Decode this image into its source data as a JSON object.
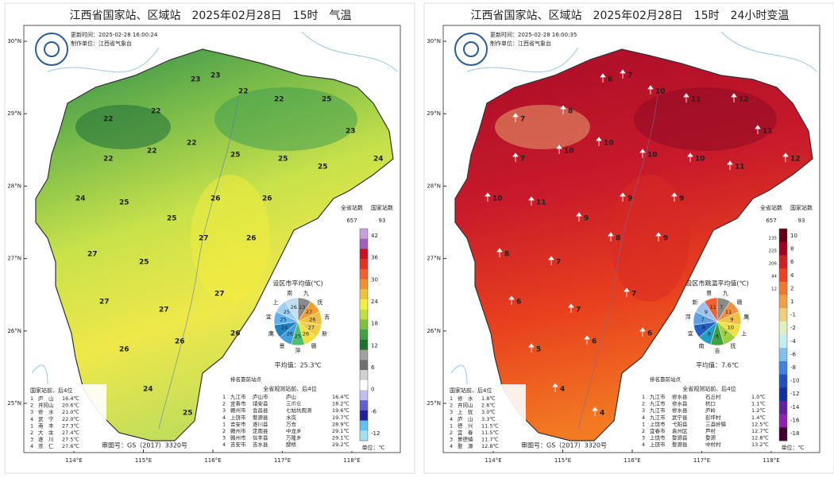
{
  "panels": [
    {
      "title": "江西省国家站、区域站　2025年02月28日　15时　气温",
      "updated": "更新时间：2025-02-28 16:00:24",
      "maker": "制作单位：江西省气象台",
      "lat_labels": [
        "30°N",
        "29°N",
        "28°N",
        "27°N",
        "26°N",
        "25°N"
      ],
      "lon_labels": [
        "114°E",
        "115°E",
        "116°E",
        "117°E",
        "118°E"
      ],
      "colorbar": {
        "left_header": "全省站数",
        "left_count": "657",
        "right_header": "国家站数",
        "right_count": "93",
        "ticks": [
          "42",
          "36",
          "30",
          "24",
          "18",
          "12",
          "6",
          "0",
          "-6",
          "-12"
        ],
        "counts": []
      },
      "stations": [
        22,
        22,
        23,
        23,
        22,
        22,
        25,
        23,
        24,
        22,
        22,
        22,
        25,
        25,
        25,
        24,
        25,
        25,
        26,
        26,
        27,
        25,
        27,
        26,
        27,
        27,
        27,
        26,
        26,
        26,
        24,
        25
      ],
      "pie": {
        "title": "设区市平均值(℃)",
        "cities": [
          "九",
          "抚",
          "吉",
          "新",
          "赣",
          "萍",
          "景",
          "鹰",
          "宜",
          "上",
          "南"
        ],
        "values": [
          "23",
          "27",
          "26",
          "27",
          "26",
          "25",
          "26",
          "24",
          "25",
          "25",
          "26"
        ],
        "average": "平均值：25.3℃"
      },
      "ranking_title": "排名靠前站点",
      "national": {
        "title": "国家站前、后4位",
        "rows": [
          [
            "1",
            "庐　山",
            "16.4℃"
          ],
          [
            "2",
            "井冈山",
            "20.6℃"
          ],
          [
            "3",
            "修　水",
            "21.0℃"
          ],
          [
            "4",
            "武　宁",
            "22.0℃"
          ],
          [
            "1",
            "南　丰",
            "27.3℃"
          ],
          [
            "2",
            "大　余",
            "27.4℃"
          ],
          [
            "3",
            "遂　川",
            "27.5℃"
          ],
          [
            "4",
            "崇　仁",
            "27.6℃"
          ]
        ]
      },
      "all": {
        "title": "全省规测站前、后4位",
        "rows": [
          [
            "1",
            "九江市",
            "庐山市",
            "庐山",
            "16.4℃"
          ],
          [
            "2",
            "宜春市",
            "靖安县",
            "三爪仑",
            "18.2℃"
          ],
          [
            "3",
            "赣州市",
            "会昌县",
            "七姑坑观测",
            "19.6℃"
          ],
          [
            "4",
            "上饶市",
            "婺源县",
            "水岚",
            "19.7℃"
          ],
          [
            "1",
            "吉安市",
            "遂川县",
            "万合",
            "28.9℃"
          ],
          [
            "2",
            "赣州市",
            "定南县",
            "中龙乡",
            "29.1℃"
          ],
          [
            "3",
            "赣州市",
            "信丰县",
            "万隆乡",
            "29.1℃"
          ],
          [
            "4",
            "吉安市",
            "吉水县",
            "醪桥",
            "29.2℃"
          ]
        ]
      },
      "review_no": "审图号：GS（2017）3320号",
      "unit": "单位：℃"
    },
    {
      "title": "江西省国家站、区域站　2025年02月28日　15时　24小时变温",
      "updated": "更新时间：2025-02-28 16:00:35",
      "maker": "制作单位：江西省气象台",
      "lat_labels": [
        "30°N",
        "29°N",
        "28°N",
        "27°N",
        "26°N",
        "25°N"
      ],
      "lon_labels": [
        "114°E",
        "115°E",
        "116°E",
        "117°E",
        "118°E"
      ],
      "colorbar": {
        "left_header": "全省站数",
        "left_count": "657",
        "right_header": "国家站数",
        "right_count": "93",
        "ticks": [
          "10",
          "8",
          "6",
          "4",
          "2",
          "1",
          "-1",
          "-2",
          "-4",
          "-6",
          "-8",
          "-10",
          "-12",
          "-14",
          "-16",
          "-18"
        ],
        "counts": [
          "135",
          "225",
          "206",
          "44",
          "12"
        ]
      },
      "stations": [
        7,
        8,
        6,
        7,
        10,
        11,
        12,
        11,
        12,
        7,
        10,
        10,
        10,
        10,
        11,
        10,
        11,
        9,
        9,
        9,
        8,
        7,
        8,
        9,
        6,
        7,
        7,
        5,
        6,
        6,
        4,
        4
      ],
      "pie": {
        "title": "设区市跳温平均值(℃)",
        "cities": [
          "九",
          "赣",
          "鹰",
          "上",
          "抚",
          "吉",
          "南",
          "宜",
          "萍",
          "新",
          "景"
        ],
        "values": [
          "7",
          "11",
          "9",
          "10",
          "7",
          "6",
          "8",
          "8",
          "7",
          "9",
          "11"
        ],
        "average": "平均值：7.6℃"
      },
      "ranking_title": "排名靠前站点",
      "national": {
        "title": "国家站前、后4位",
        "rows": [
          [
            "1",
            "修　水",
            "1.8℃"
          ],
          [
            "2",
            "井冈山",
            "2.6℃"
          ],
          [
            "3",
            "上　犹",
            "3.0℃"
          ],
          [
            "4",
            "庐　山",
            "3.3℃"
          ],
          [
            "1",
            "德　兴",
            "11.5℃"
          ],
          [
            "2",
            "宜　春",
            "11.5℃"
          ],
          [
            "3",
            "景德镇",
            "11.7℃"
          ],
          [
            "4",
            "婺　源",
            "12.8℃"
          ]
        ]
      },
      "all": {
        "title": "全省规测站前、后4位",
        "rows": [
          [
            "1",
            "九江市",
            "修水县",
            "石丘村",
            "1.0℃"
          ],
          [
            "2",
            "九江市",
            "修水县",
            "杭口",
            "1.1℃"
          ],
          [
            "3",
            "九江市",
            "修水县",
            "庐岭",
            "1.2℃"
          ],
          [
            "4",
            "九江市",
            "武宁县",
            "彭坪村",
            "1.4℃"
          ],
          [
            "1",
            "上饶市",
            "弋阳县",
            "三县岭镇",
            "12.5℃"
          ],
          [
            "2",
            "宜春市",
            "袁州区",
            "芦村",
            "12.7℃"
          ],
          [
            "3",
            "上饶市",
            "婺源县",
            "婺源",
            "12.8℃"
          ],
          [
            "4",
            "上饶市",
            "婺源县",
            "中村村",
            "13.2℃"
          ]
        ]
      },
      "review_no": "审图号：GS（2017）3320号",
      "unit": "单位：℃"
    }
  ]
}
